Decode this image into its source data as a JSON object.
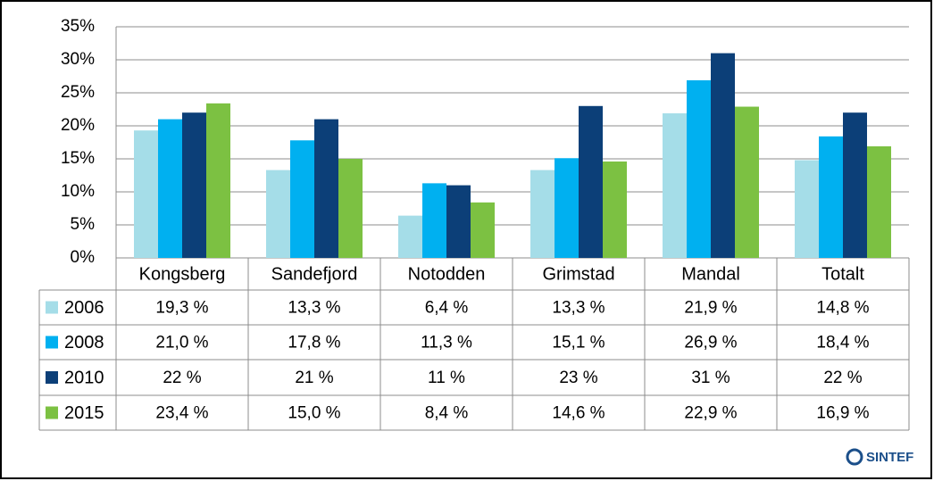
{
  "chart_data": {
    "type": "bar",
    "categories": [
      "Kongsberg",
      "Sandefjord",
      "Notodden",
      "Grimstad",
      "Mandal",
      "Totalt"
    ],
    "series": [
      {
        "name": "2006",
        "color": "#a5dde8",
        "values": [
          19.3,
          13.3,
          6.4,
          13.3,
          21.9,
          14.8
        ],
        "value_labels": [
          "19,3 %",
          "13,3 %",
          "6,4 %",
          "13,3 %",
          "21,9 %",
          "14,8 %"
        ]
      },
      {
        "name": "2008",
        "color": "#00b0f0",
        "values": [
          21.0,
          17.8,
          11.3,
          15.1,
          26.9,
          18.4
        ],
        "value_labels": [
          "21,0 %",
          "17,8 %",
          "11,3 %",
          "15,1 %",
          "26,9 %",
          "18,4 %"
        ]
      },
      {
        "name": "2010",
        "color": "#0c3f78",
        "values": [
          22,
          21,
          11,
          23,
          31,
          22
        ],
        "value_labels": [
          "22 %",
          "21 %",
          "11 %",
          "23 %",
          "31 %",
          "22 %"
        ]
      },
      {
        "name": "2015",
        "color": "#7cc142",
        "values": [
          23.4,
          15.0,
          8.4,
          14.6,
          22.9,
          16.9
        ],
        "value_labels": [
          "23,4 %",
          "15,0 %",
          "8,4 %",
          "14,6 %",
          "22,9 %",
          "16,9 %"
        ]
      }
    ],
    "ylim": [
      0,
      35
    ],
    "yticks": [
      {
        "value": 0,
        "label": "0%"
      },
      {
        "value": 5,
        "label": "5%"
      },
      {
        "value": 10,
        "label": "10%"
      },
      {
        "value": 15,
        "label": "15%"
      },
      {
        "value": 20,
        "label": "20%"
      },
      {
        "value": 25,
        "label": "25%"
      },
      {
        "value": 30,
        "label": "30%"
      },
      {
        "value": 35,
        "label": "35%"
      }
    ],
    "grid": true
  },
  "logo": "SINTEF"
}
